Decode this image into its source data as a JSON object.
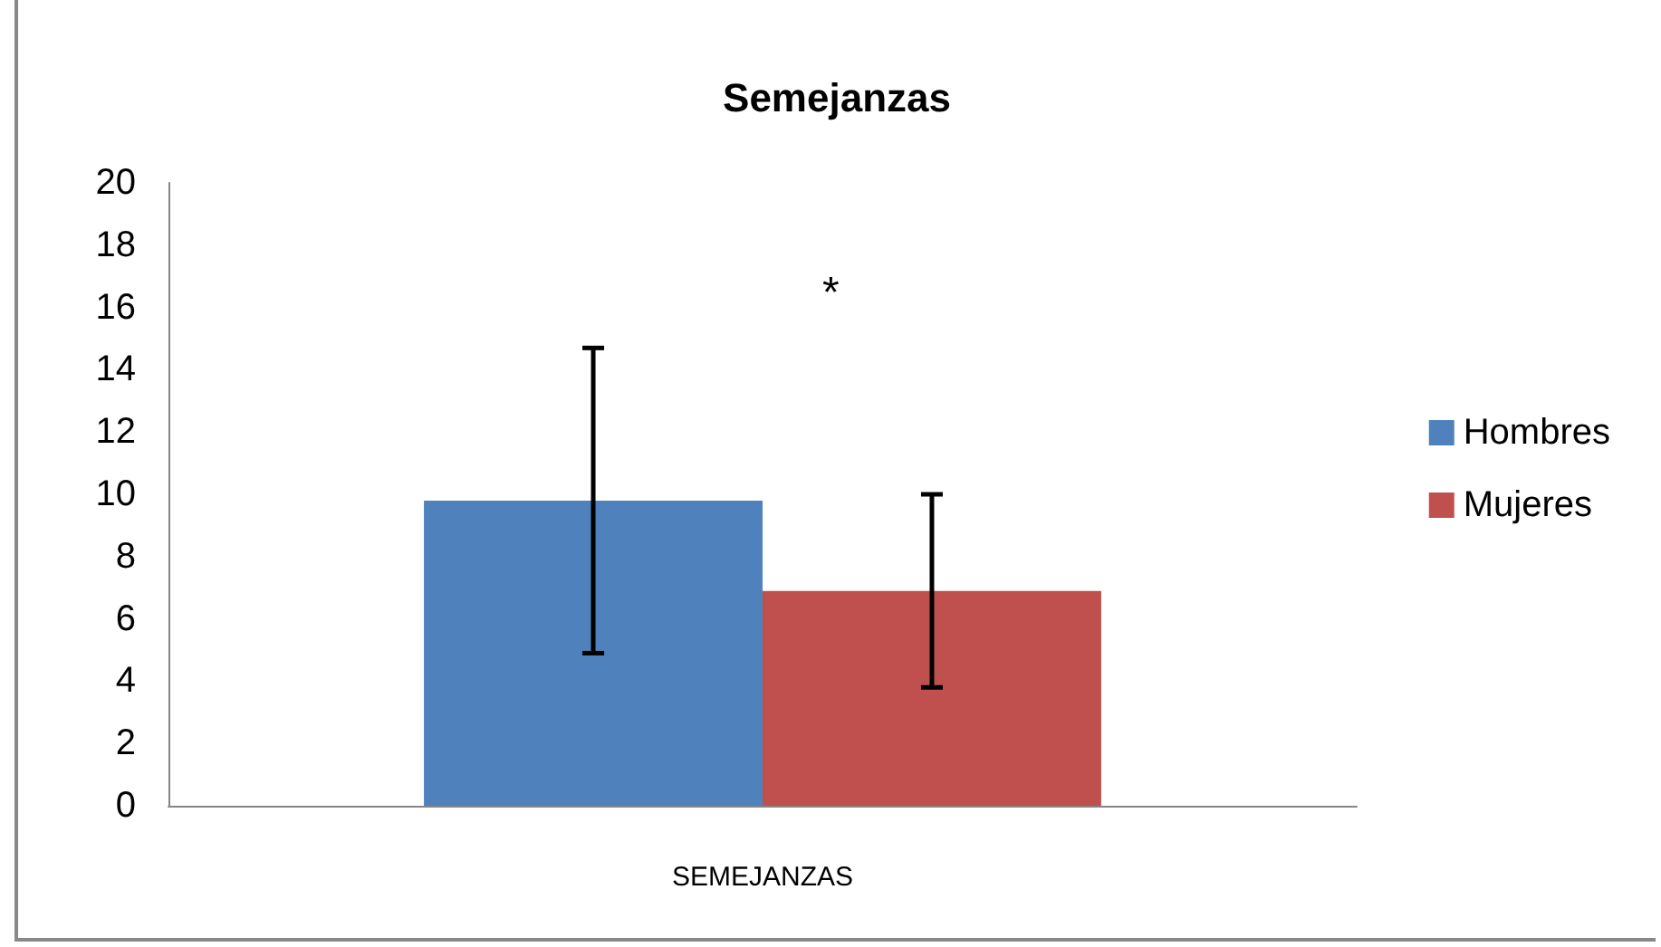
{
  "chart_data": {
    "type": "bar",
    "title": "Semejanzas",
    "categories": [
      "SEMEJANZAS"
    ],
    "series": [
      {
        "name": "Hombres",
        "color": "#4f81bd",
        "values": [
          9.8
        ],
        "errors": [
          4.9
        ]
      },
      {
        "name": "Mujeres",
        "color": "#c0504d",
        "values": [
          6.9
        ],
        "errors": [
          3.1
        ]
      }
    ],
    "ylim": [
      0,
      20
    ],
    "yticks": [
      0,
      2,
      4,
      6,
      8,
      10,
      12,
      14,
      16,
      18,
      20
    ],
    "grid": false,
    "legend": "right",
    "annotations": [
      "*"
    ]
  }
}
